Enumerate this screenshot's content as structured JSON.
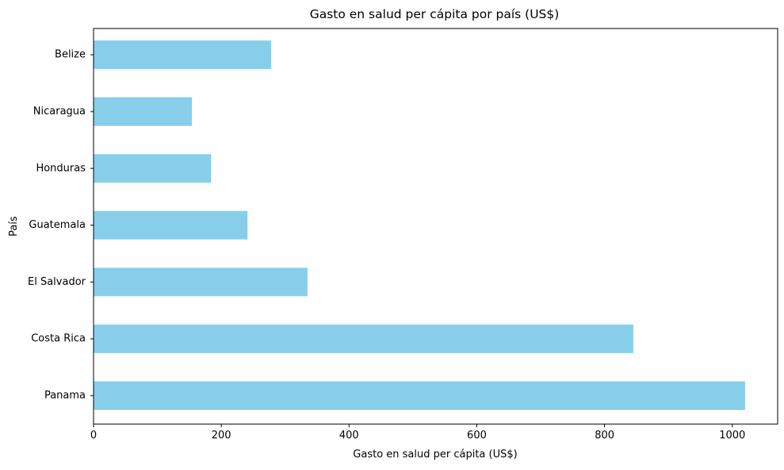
{
  "chart_data": {
    "type": "bar",
    "orientation": "horizontal",
    "title": "Gasto en salud per cápita por país (US$)",
    "xlabel": "Gasto en salud per cápita (US$)",
    "ylabel": "País",
    "categories": [
      "Panama",
      "Costa Rica",
      "El Salvador",
      "Guatemala",
      "Honduras",
      "Nicaragua",
      "Belize"
    ],
    "values": [
      1020,
      845,
      335,
      241,
      184,
      154,
      278
    ],
    "xlim": [
      0,
      1071
    ],
    "xticks": [
      0,
      200,
      400,
      600,
      800,
      1000
    ],
    "xtick_labels": [
      "0",
      "200",
      "400",
      "600",
      "800",
      "1000"
    ],
    "bar_color": "#87ceeb",
    "grid": false,
    "legend": "none"
  }
}
